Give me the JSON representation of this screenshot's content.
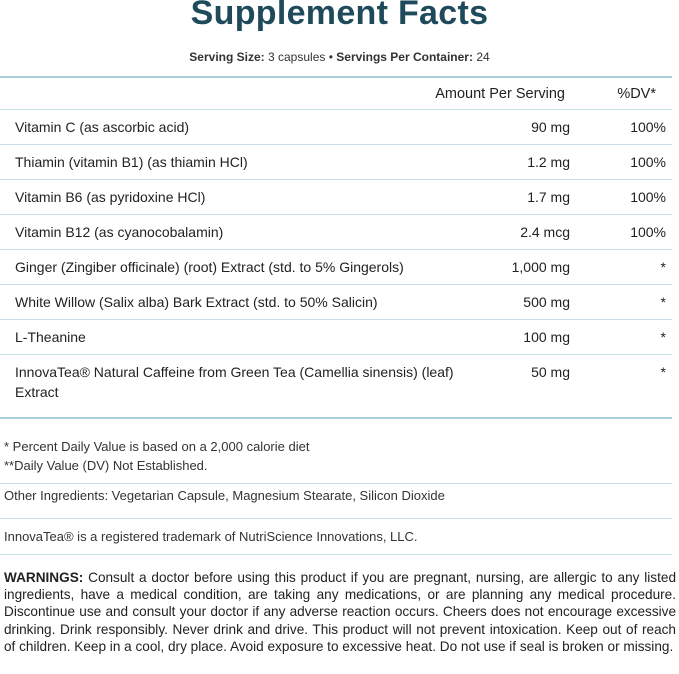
{
  "header": {
    "title": "Supplement Facts",
    "serving": {
      "size_label": "Serving Size:",
      "size": "3 capsules",
      "separator": "•",
      "per_container_label": "Servings Per Container:",
      "per_container": "24"
    }
  },
  "table": {
    "columns": [
      "Amount Per Serving",
      "%DV*"
    ],
    "rows": [
      [
        "Vitamin C (as ascorbic acid)",
        "90 mg",
        "100%"
      ],
      [
        "Thiamin (vitamin B1) (as thiamin HCl)",
        "1.2 mg",
        "100%"
      ],
      [
        "Vitamin B6 (as pyridoxine HCl)",
        "1.7 mg",
        "100%"
      ],
      [
        "Vitamin B12 (as cyanocobalamin)",
        "2.4 mcg",
        "100%"
      ],
      [
        "Ginger (Zingiber officinale) (root) Extract (std. to 5% Gingerols)",
        "1,000 mg",
        "*"
      ],
      [
        "White Willow (Salix alba) Bark Extract (std. to 50% Salicin)",
        "500 mg",
        "*"
      ],
      [
        "L-Theanine",
        "100 mg",
        "*"
      ],
      [
        "InnovaTea® Natural Caffeine from Green Tea (Camellia sinensis) (leaf) Extract",
        "50 mg",
        "*"
      ]
    ]
  },
  "footnotes": [
    "* Percent Daily Value is based on a 2,000 calorie diet",
    "**Daily Value (DV) Not Established."
  ],
  "other_ingredients": "Other Ingredients: Vegetarian Capsule, Magnesium Stearate, Silicon Dioxide",
  "trademark": "InnovaTea® is a registered trademark of NutriScience Innovations, LLC.",
  "warnings": {
    "label": "WARNINGS:",
    "text": "Consult a doctor before using this product if you are pregnant, nursing, are allergic to any listed ingredients, have a medical condition, are taking any medications, or are planning any medical procedure. Discontinue use and consult your doctor if any adverse reaction occurs. Cheers does not encourage excessive drinking. Drink responsibly. Never drink and drive. This product will not prevent intoxication. Keep out of reach of children. Keep in a cool, dry place. Avoid exposure to excessive heat. Do not use if seal is broken or missing."
  }
}
